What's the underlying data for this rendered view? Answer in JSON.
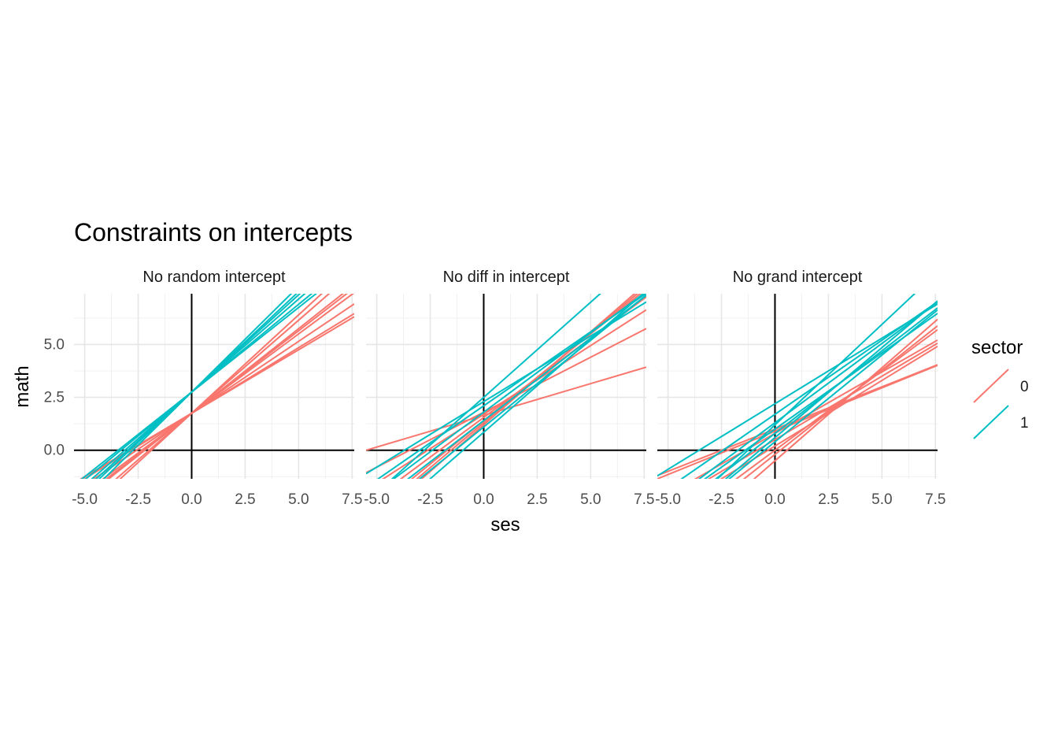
{
  "chart_data": {
    "type": "line",
    "title": "Constraints on intercepts",
    "xlabel": "ses",
    "ylabel": "math",
    "xlim": [
      -5.5,
      7.6
    ],
    "ylim": [
      -1.35,
      7.4
    ],
    "x_ticks": [
      "-5.0",
      "-2.5",
      "0.0",
      "2.5",
      "5.0",
      "7.5"
    ],
    "y_ticks": [
      "0.0",
      "2.5",
      "5.0"
    ],
    "grid": true,
    "legend": {
      "title": "sector",
      "position": "right",
      "entries": [
        {
          "label": "0",
          "color": "#F8766D"
        },
        {
          "label": "1",
          "color": "#00BFC4"
        }
      ]
    },
    "panels": [
      {
        "label": "No random intercept",
        "lines": [
          {
            "sector": "0",
            "intercept": 1.75,
            "slope": 0.6
          },
          {
            "sector": "0",
            "intercept": 1.75,
            "slope": 0.62
          },
          {
            "sector": "0",
            "intercept": 1.75,
            "slope": 0.68
          },
          {
            "sector": "0",
            "intercept": 1.75,
            "slope": 0.75
          },
          {
            "sector": "0",
            "intercept": 1.75,
            "slope": 0.78
          },
          {
            "sector": "0",
            "intercept": 1.75,
            "slope": 0.8
          },
          {
            "sector": "0",
            "intercept": 1.75,
            "slope": 0.88
          },
          {
            "sector": "0",
            "intercept": 1.75,
            "slope": 0.93
          },
          {
            "sector": "1",
            "intercept": 2.75,
            "slope": 0.8
          },
          {
            "sector": "1",
            "intercept": 2.75,
            "slope": 0.83
          },
          {
            "sector": "1",
            "intercept": 2.75,
            "slope": 0.88
          },
          {
            "sector": "1",
            "intercept": 2.75,
            "slope": 0.92
          },
          {
            "sector": "1",
            "intercept": 2.75,
            "slope": 0.95
          },
          {
            "sector": "1",
            "intercept": 2.75,
            "slope": 1.0
          }
        ]
      },
      {
        "label": "No diff in intercept",
        "lines": [
          {
            "sector": "0",
            "intercept": 1.65,
            "slope": 0.3
          },
          {
            "sector": "0",
            "intercept": 1.8,
            "slope": 0.52
          },
          {
            "sector": "0",
            "intercept": 1.7,
            "slope": 0.65
          },
          {
            "sector": "0",
            "intercept": 1.55,
            "slope": 0.75
          },
          {
            "sector": "0",
            "intercept": 1.4,
            "slope": 0.82
          },
          {
            "sector": "0",
            "intercept": 1.3,
            "slope": 0.85
          },
          {
            "sector": "0",
            "intercept": 1.2,
            "slope": 0.88
          },
          {
            "sector": "1",
            "intercept": 2.5,
            "slope": 0.9
          },
          {
            "sector": "1",
            "intercept": 2.3,
            "slope": 0.62
          },
          {
            "sector": "1",
            "intercept": 2.1,
            "slope": 0.7
          },
          {
            "sector": "1",
            "intercept": 1.8,
            "slope": 0.75
          },
          {
            "sector": "1",
            "intercept": 1.4,
            "slope": 0.78
          },
          {
            "sector": "1",
            "intercept": 1.1,
            "slope": 0.82
          },
          {
            "sector": "1",
            "intercept": 0.85,
            "slope": 0.88
          }
        ]
      },
      {
        "label": "No grand intercept",
        "lines": [
          {
            "sector": "0",
            "intercept": 0.9,
            "slope": 0.41
          },
          {
            "sector": "0",
            "intercept": 1.0,
            "slope": 0.4
          },
          {
            "sector": "0",
            "intercept": 0.8,
            "slope": 0.58
          },
          {
            "sector": "0",
            "intercept": 0.5,
            "slope": 0.6
          },
          {
            "sector": "0",
            "intercept": 0.2,
            "slope": 0.62
          },
          {
            "sector": "0",
            "intercept": 0.0,
            "slope": 0.75
          },
          {
            "sector": "0",
            "intercept": -0.2,
            "slope": 0.8
          },
          {
            "sector": "0",
            "intercept": -0.5,
            "slope": 0.88
          },
          {
            "sector": "1",
            "intercept": 2.2,
            "slope": 0.62
          },
          {
            "sector": "1",
            "intercept": 1.7,
            "slope": 0.7
          },
          {
            "sector": "1",
            "intercept": 1.3,
            "slope": 0.75
          },
          {
            "sector": "1",
            "intercept": 1.0,
            "slope": 0.72
          },
          {
            "sector": "1",
            "intercept": 0.8,
            "slope": 0.78
          },
          {
            "sector": "1",
            "intercept": 0.6,
            "slope": 0.85
          },
          {
            "sector": "1",
            "intercept": 1.2,
            "slope": 0.95
          },
          {
            "sector": "1",
            "intercept": 0.4,
            "slope": 0.82
          }
        ]
      }
    ]
  }
}
